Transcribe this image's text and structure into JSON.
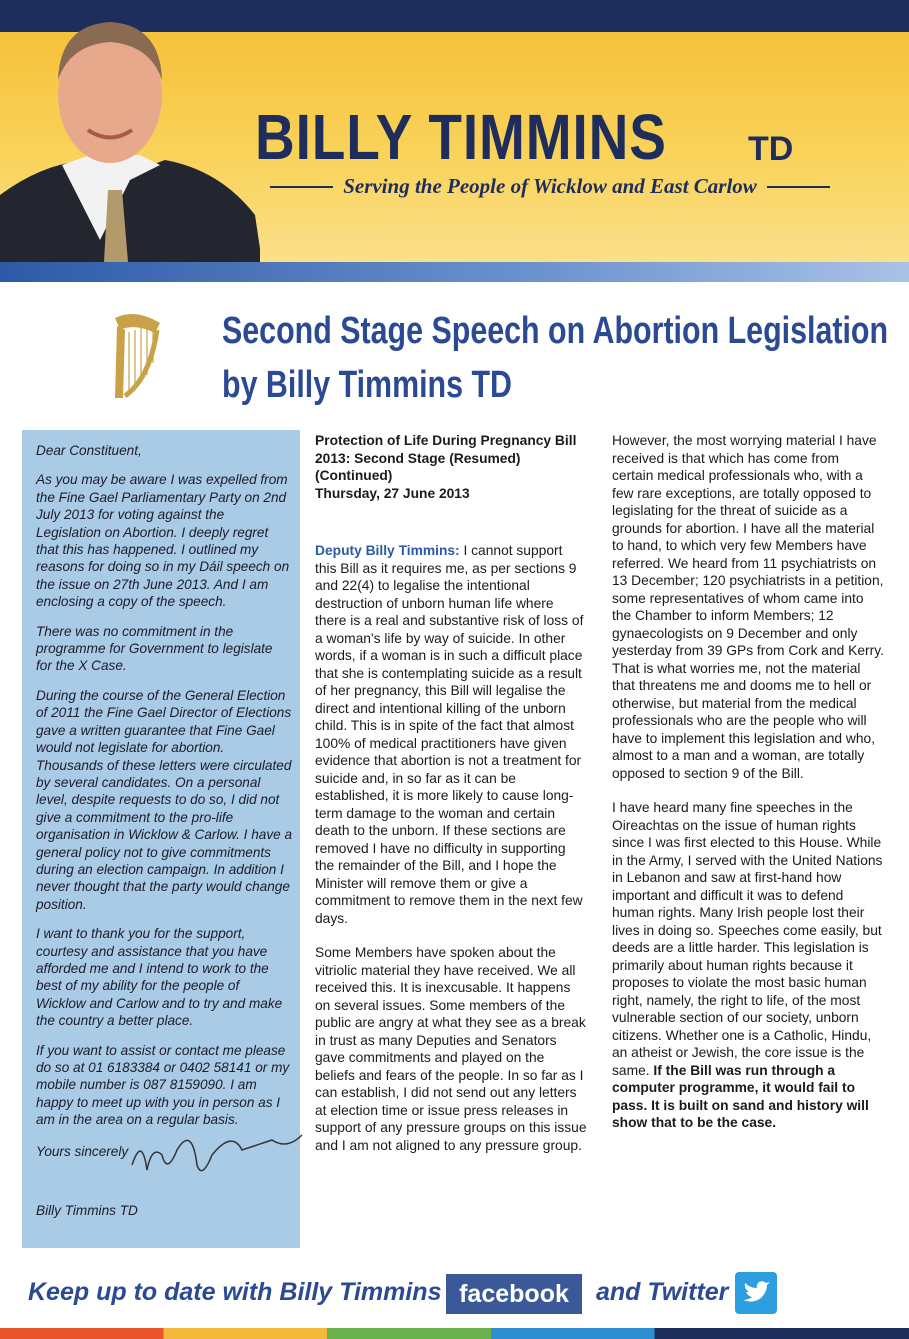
{
  "header": {
    "name": "BILLY TIMMINS",
    "suffix": "TD",
    "tagline": "Serving the People of Wicklow and East Carlow"
  },
  "title": {
    "line1": "Second Stage Speech on Abortion Legislation",
    "line2": "by Billy Timmins TD"
  },
  "letter": {
    "salutation": "Dear Constituent,",
    "paragraphs": [
      "As you may be aware I was expelled from the Fine Gael Parliamentary Party on 2nd July 2013 for voting against the Legislation on Abortion. I deeply regret that this has happened. I outlined my reasons for doing so in my Dáil speech on the issue on 27th June 2013. And I am enclosing a copy of the speech.",
      "There was no commitment in the programme for Government to legislate for the X Case.",
      "During the course of the General Election of 2011 the Fine Gael Director of Elections gave a written guarantee that Fine Gael would not legislate for abortion. Thousands of these letters were circulated by several candidates. On a personal level, despite requests to do so, I did not give a commitment to the pro-life organisation in Wicklow & Carlow. I have a general policy not to give commitments during an election campaign. In addition I never thought that the party would change position.",
      "I want to thank you for the support, courtesy and assistance that you have afforded me and I intend to work to the best of my ability for the people of Wicklow and Carlow and to try and make the country a better place.",
      "If you want to assist or contact me please do so at 01 6183384 or 0402 58141 or my mobile number is 087 8159090. I am happy to meet up with you in person as I am in the area on a regular basis."
    ],
    "closing": "Yours sincerely",
    "signoff": "Billy Timmins TD"
  },
  "speech": {
    "heading": "Protection of Life During Pregnancy Bill 2013: Second Stage (Resumed) (Continued)",
    "date": "Thursday, 27 June 2013",
    "speaker": "Deputy Billy Timmins:",
    "paragraphs": [
      "I cannot support this Bill as it requires me, as per sections 9 and 22(4) to legalise the intentional destruction of unborn human life where there is a real and substantive risk of loss of a woman's life by way of suicide. In other words, if a woman is in such a difficult place that she is contemplating suicide as a result of her pregnancy, this Bill will legalise the direct and intentional killing of the unborn child. This is in spite of the fact that almost 100% of medical practitioners have given evidence that abortion is not a treatment for suicide and, in so far as it can be established, it is more likely to cause long-term damage to the woman and certain death to the unborn. If these sections are removed I have no difficulty in supporting the remainder of the Bill, and I hope the Minister will remove them or give a commitment to remove them in the next few days.",
      "Some Members have spoken about the vitriolic material they have received. We all received this. It is inexcusable. It happens on several issues. Some members of the public are angry at what they see as a break in trust as many Deputies and Senators gave commitments and played on the beliefs and fears of the people. In so far as I can establish, I did not send out any letters at election time or issue press releases in support of any pressure groups on this issue and I am not aligned to any pressure group.",
      "However, the most worrying material I have received is that which has come from certain medical professionals who, with a few rare exceptions, are totally opposed to legislating for the threat of suicide as a grounds for abortion. I have all the material to hand, to which very few Members have referred. We heard from 11 psychiatrists on 13 December; 120 psychiatrists in a petition, some representatives of whom came into the Chamber to inform Members; 12 gynaecologists on 9 December and only yesterday from 39 GPs from Cork and Kerry. That is what worries me, not the material that threatens me and dooms me to hell or otherwise, but material from the medical professionals who are the people who will have to implement this legislation and who, almost to a man and a woman, are totally opposed to section 9 of the Bill.",
      "I have heard many fine speeches in the Oireachtas on the issue of human rights since I was first elected to this House. While in the Army, I served with the United Nations in Lebanon and saw at first-hand how important and difficult it was to defend human rights. Many Irish people lost their lives in doing so. Speeches come easily, but deeds are a little harder. This legislation is primarily about human rights because it proposes to violate the most basic human right, namely, the right to life, of the most vulnerable section of our society, unborn citizens. Whether one is a Catholic, Hindu, an atheist or Jewish, the core issue is the same."
    ],
    "conclusion": "If the Bill was run through a computer programme, it would fail to pass. It is built on sand and history will show that to be the case."
  },
  "footer": {
    "text": "Keep up to date with Billy Timmins on",
    "facebook": "facebook",
    "twitter": "and Twitter"
  }
}
